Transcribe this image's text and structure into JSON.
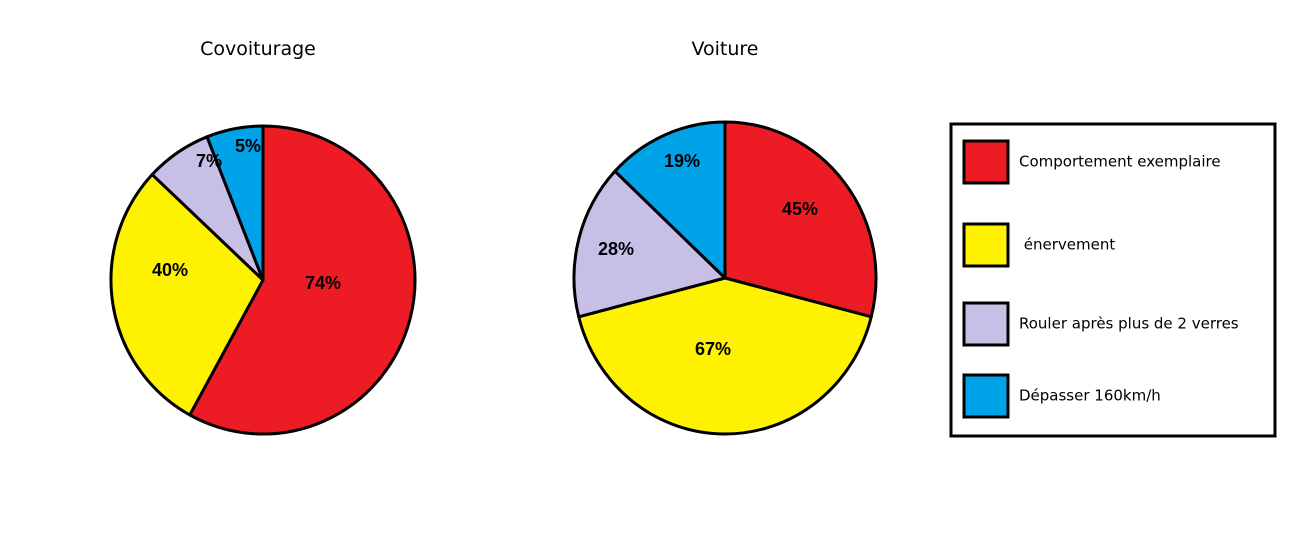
{
  "colors": {
    "red": "#ed1c24",
    "yellow": "#fff200",
    "lavender": "#c8bfe7",
    "blue": "#00a2e8",
    "outline": "#000000"
  },
  "legend": {
    "items": [
      {
        "label": "Comportement exemplaire",
        "color": "#ed1c24"
      },
      {
        "label": " énervement",
        "color": "#fff200"
      },
      {
        "label": "Rouler après plus de 2 verres",
        "color": "#c8bfe7"
      },
      {
        "label": "Dépasser 160km/h",
        "color": "#00a2e8"
      }
    ]
  },
  "chart_data": [
    {
      "type": "pie",
      "title": "Covoiturage",
      "start": "12 o'clock, clockwise",
      "slices": [
        {
          "category": "Comportement exemplaire",
          "label": "74%",
          "share_of_circle": 0.58,
          "color": "#ed1c24"
        },
        {
          "category": "énervement",
          "label": "40%",
          "share_of_circle": 0.29,
          "color": "#fff200"
        },
        {
          "category": "Rouler après plus de 2 verres",
          "label": "7%",
          "share_of_circle": 0.07,
          "color": "#c8bfe7"
        },
        {
          "category": "Dépasser 160km/h",
          "label": "5%",
          "share_of_circle": 0.06,
          "color": "#00a2e8"
        }
      ]
    },
    {
      "type": "pie",
      "title": "Voiture",
      "start": "12 o'clock, clockwise",
      "slices": [
        {
          "category": "Comportement exemplaire",
          "label": "45%",
          "share_of_circle": 0.29,
          "color": "#ed1c24"
        },
        {
          "category": "énervement",
          "label": "67%",
          "share_of_circle": 0.42,
          "color": "#fff200"
        },
        {
          "category": "Rouler après plus de 2 verres",
          "label": "28%",
          "share_of_circle": 0.16,
          "color": "#c8bfe7"
        },
        {
          "category": "Dépasser 160km/h",
          "label": "19%",
          "share_of_circle": 0.13,
          "color": "#00a2e8"
        }
      ]
    }
  ]
}
